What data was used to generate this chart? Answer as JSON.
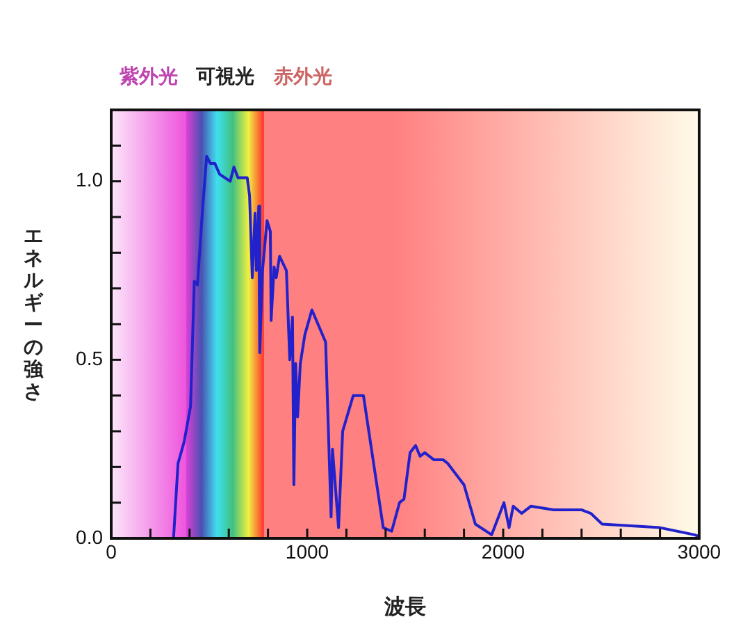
{
  "chart_data": {
    "type": "line",
    "xlabel": "波長",
    "ylabel": "エネルギーの強さ",
    "xlim": [
      0,
      3000
    ],
    "ylim": [
      0,
      1.2
    ],
    "xticks": [
      0,
      {
        "value": 200,
        "label": null
      },
      {
        "value": 400,
        "label": null
      },
      {
        "value": 600,
        "label": null
      },
      {
        "value": 800,
        "label": null
      },
      1000,
      {
        "value": 1200,
        "label": null
      },
      {
        "value": 1400,
        "label": null
      },
      {
        "value": 1600,
        "label": null
      },
      {
        "value": 1800,
        "label": null
      },
      2000,
      {
        "value": 2200,
        "label": null
      },
      {
        "value": 2400,
        "label": null
      },
      {
        "value": 2600,
        "label": null
      },
      {
        "value": 2800,
        "label": null
      },
      3000
    ],
    "yticks": [
      {
        "value": 0,
        "label": "0.0"
      },
      {
        "value": 0.1,
        "label": null
      },
      {
        "value": 0.2,
        "label": null
      },
      {
        "value": 0.3,
        "label": null
      },
      {
        "value": 0.4,
        "label": null
      },
      {
        "value": 0.5,
        "label": "0.5"
      },
      {
        "value": 0.6,
        "label": null
      },
      {
        "value": 0.7,
        "label": null
      },
      {
        "value": 0.8,
        "label": null
      },
      {
        "value": 0.9,
        "label": null
      },
      {
        "value": 1,
        "label": "1.0"
      },
      {
        "value": 1.1,
        "label": null
      }
    ],
    "grid": false,
    "legend": false,
    "marker": "none",
    "line_style": "solid",
    "bands": [
      {
        "axis": "x",
        "from": 0,
        "to": 380,
        "label": "紫外光",
        "color": "#ee55dd"
      },
      {
        "axis": "x",
        "from": 380,
        "to": 780,
        "label": "可視光",
        "color": null
      },
      {
        "axis": "x",
        "from": 780,
        "to": 3000,
        "label": "赤外光",
        "color": "#ff8080"
      }
    ],
    "series": [
      {
        "color": "#2222cc",
        "x": [
          318,
          341,
          372,
          405,
          424,
          440,
          466,
          487,
          506,
          529,
          553,
          607,
          626,
          647,
          694,
          706,
          720,
          734,
          741,
          753,
          758,
          772,
          795,
          812,
          816,
          831,
          842,
          859,
          894,
          911,
          925,
          932,
          941,
          951,
          965,
          988,
          1024,
          1094,
          1122,
          1129,
          1160,
          1181,
          1235,
          1287,
          1388,
          1431,
          1471,
          1494,
          1525,
          1553,
          1576,
          1600,
          1647,
          1694,
          1717,
          1800,
          1858,
          1941,
          2004,
          2030,
          2051,
          2094,
          2141,
          2258,
          2399,
          2447,
          2505,
          2800,
          2976,
          3000
        ],
        "values": [
          0,
          0.21,
          0.27,
          0.37,
          0.72,
          0.71,
          0.92,
          1.07,
          1.05,
          1.05,
          1.02,
          1.0,
          1.04,
          1.01,
          1.01,
          0.96,
          0.73,
          0.91,
          0.75,
          0.93,
          0.52,
          0.75,
          0.89,
          0.86,
          0.61,
          0.76,
          0.73,
          0.79,
          0.75,
          0.5,
          0.62,
          0.15,
          0.49,
          0.34,
          0.49,
          0.57,
          0.64,
          0.55,
          0.06,
          0.25,
          0.03,
          0.3,
          0.4,
          0.4,
          0.03,
          0.02,
          0.1,
          0.11,
          0.24,
          0.26,
          0.23,
          0.24,
          0.22,
          0.22,
          0.21,
          0.15,
          0.04,
          0.01,
          0.1,
          0.03,
          0.09,
          0.07,
          0.09,
          0.08,
          0.08,
          0.07,
          0.04,
          0.03,
          0.01,
          0.005
        ]
      }
    ]
  }
}
